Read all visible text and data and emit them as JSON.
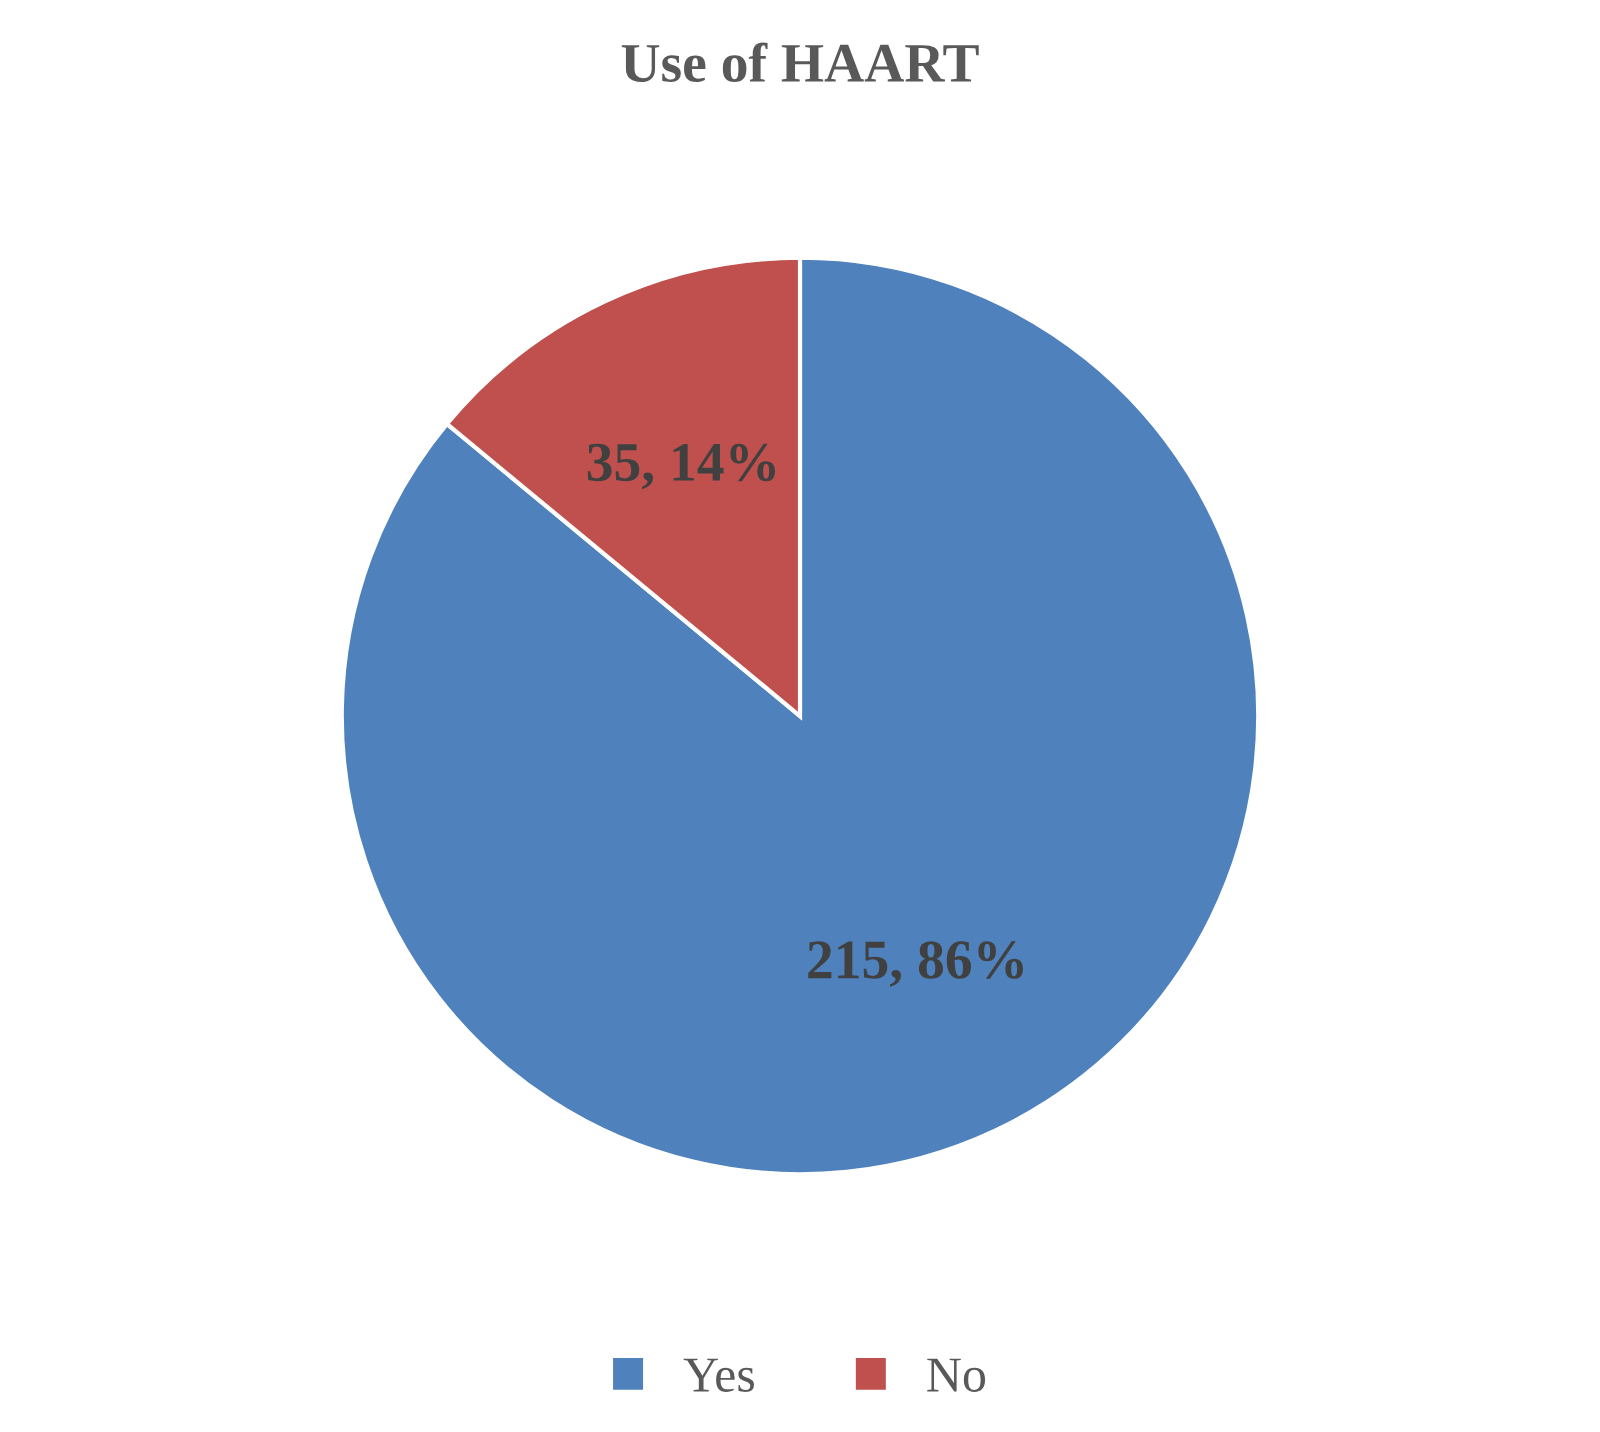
{
  "chart_data": {
    "type": "pie",
    "title": "Use of HAART",
    "categories": [
      "Yes",
      "No"
    ],
    "values": [
      215,
      35
    ],
    "colors": [
      "#4f81bd",
      "#c0504d"
    ],
    "value_labels": [
      "215, 86%",
      "35, 14%"
    ],
    "legend": "bottom"
  }
}
